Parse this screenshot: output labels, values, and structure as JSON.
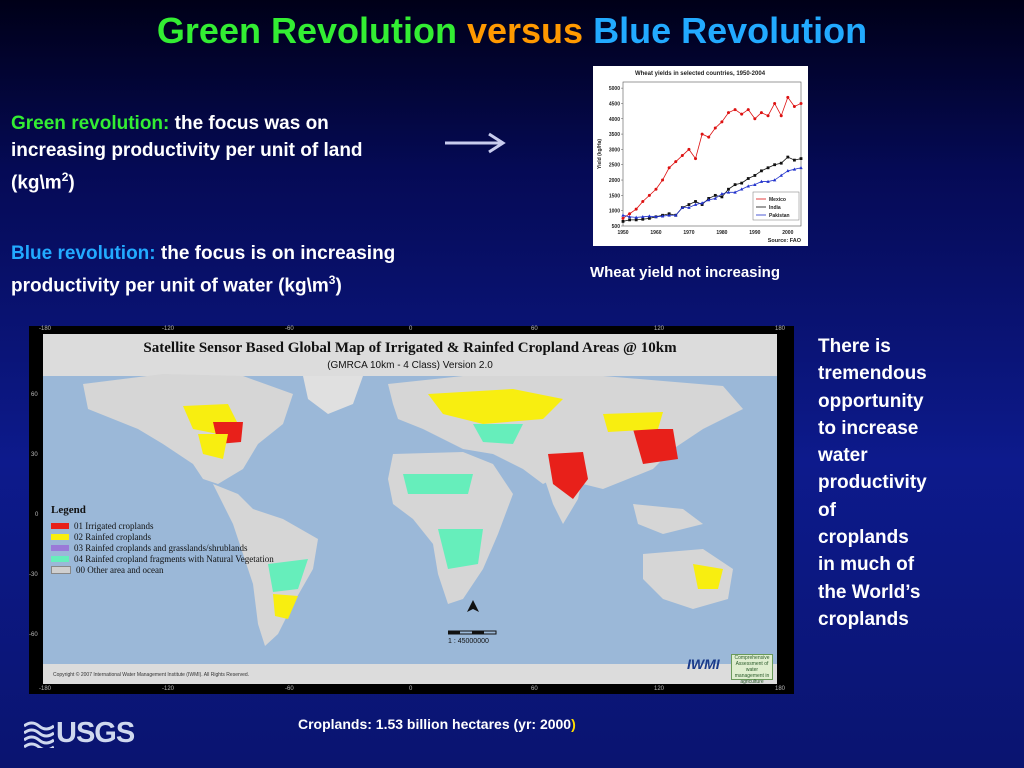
{
  "title": {
    "part1": "Green Revolution",
    "part2": "versus",
    "part3": "Blue Revolution"
  },
  "green_para": {
    "label": "Green revolution:",
    "text": "the focus was on increasing productivity per unit of land (kg\\m",
    "sup": "2",
    "close": ")"
  },
  "blue_para": {
    "label": "Blue revolution:",
    "text": "the focus is on increasing productivity per unit of water (kg\\m",
    "sup": "3",
    "close": ")"
  },
  "chart": {
    "caption": "Wheat yield not increasing",
    "chart_data": {
      "type": "line",
      "title": "Wheat yields in selected countries, 1950-2004",
      "xlabel": "",
      "ylabel": "Yield (kg/Ha)",
      "xlim": [
        1950,
        2004
      ],
      "ylim": [
        500,
        5200
      ],
      "xticks": [
        1950,
        1960,
        1970,
        1980,
        1990,
        2000
      ],
      "yticks": [
        500,
        1000,
        1500,
        2000,
        2500,
        3000,
        3500,
        4000,
        4500,
        5000
      ],
      "source": "Source:  FAO",
      "legend_position": "bottom-right",
      "series": [
        {
          "name": "Mexico",
          "color": "#dd1111",
          "marker": "circle",
          "x": [
            1950,
            1952,
            1954,
            1956,
            1958,
            1960,
            1962,
            1964,
            1966,
            1968,
            1970,
            1972,
            1974,
            1976,
            1978,
            1980,
            1982,
            1984,
            1986,
            1988,
            1990,
            1992,
            1994,
            1996,
            1998,
            2000,
            2002,
            2004
          ],
          "y": [
            750,
            900,
            1050,
            1300,
            1500,
            1700,
            2000,
            2400,
            2600,
            2800,
            3000,
            2700,
            3500,
            3400,
            3700,
            3900,
            4200,
            4300,
            4150,
            4300,
            4000,
            4200,
            4100,
            4500,
            4100,
            4700,
            4400,
            4500
          ]
        },
        {
          "name": "India",
          "color": "#111111",
          "marker": "square",
          "x": [
            1950,
            1952,
            1954,
            1956,
            1958,
            1960,
            1962,
            1964,
            1966,
            1968,
            1970,
            1972,
            1974,
            1976,
            1978,
            1980,
            1982,
            1984,
            1986,
            1988,
            1990,
            1992,
            1994,
            1996,
            1998,
            2000,
            2002,
            2004
          ],
          "y": [
            650,
            700,
            700,
            720,
            750,
            800,
            850,
            900,
            850,
            1100,
            1200,
            1300,
            1200,
            1400,
            1500,
            1450,
            1700,
            1850,
            1900,
            2050,
            2150,
            2300,
            2400,
            2500,
            2550,
            2750,
            2650,
            2700
          ]
        },
        {
          "name": "Pakistan",
          "color": "#2233cc",
          "marker": "triangle",
          "x": [
            1950,
            1952,
            1954,
            1956,
            1958,
            1960,
            1962,
            1964,
            1966,
            1968,
            1970,
            1972,
            1974,
            1976,
            1978,
            1980,
            1982,
            1984,
            1986,
            1988,
            1990,
            1992,
            1994,
            1996,
            1998,
            2000,
            2002,
            2004
          ],
          "y": [
            850,
            800,
            780,
            800,
            820,
            800,
            820,
            850,
            850,
            1100,
            1100,
            1200,
            1250,
            1350,
            1400,
            1550,
            1600,
            1600,
            1700,
            1800,
            1850,
            1950,
            1950,
            2000,
            2150,
            2300,
            2350,
            2400
          ]
        }
      ]
    }
  },
  "map": {
    "title": "Satellite Sensor Based Global Map of Irrigated & Rainfed Cropland Areas @ 10km",
    "subtitle": "(GMRCA 10km - 4 Class) Version 2.0",
    "legend_title": "Legend",
    "legend": [
      {
        "label": "01 Irrigated croplands",
        "color": "#e8201a"
      },
      {
        "label": "02 Rainfed croplands",
        "color": "#f8ee10"
      },
      {
        "label": "03 Rainfed croplands and grasslands/shrublands",
        "color": "#9a7ad8"
      },
      {
        "label": "04 Rainfed cropland fragments with Natural Vegetation",
        "color": "#66eebb"
      },
      {
        "label": "00 Other area and ocean",
        "color": "#cfcfcf"
      }
    ],
    "scale": "1 : 45000000",
    "copyright": "Copyright © 2007 International Water Management Institute (IWMI). All Rights Reserved.",
    "iwmi": "IWMI",
    "ca_badge": "Comprehensive Assessment of water management in agriculture",
    "lon_ticks": [
      "-180",
      "-120",
      "-60",
      "0",
      "60",
      "120",
      "180"
    ],
    "lat_ticks": [
      "60",
      "30",
      "0",
      "-30",
      "-60"
    ]
  },
  "side_text": [
    "There is",
    "tremendous",
    "opportunity",
    "to increase",
    "water",
    "productivity",
    "of",
    "croplands",
    "in much of",
    "the World’s",
    "croplands"
  ],
  "bottom_caption": {
    "text": "Croplands: 1.53 billion hectares (yr: 2000",
    "paren": ")"
  },
  "logo": "USGS"
}
